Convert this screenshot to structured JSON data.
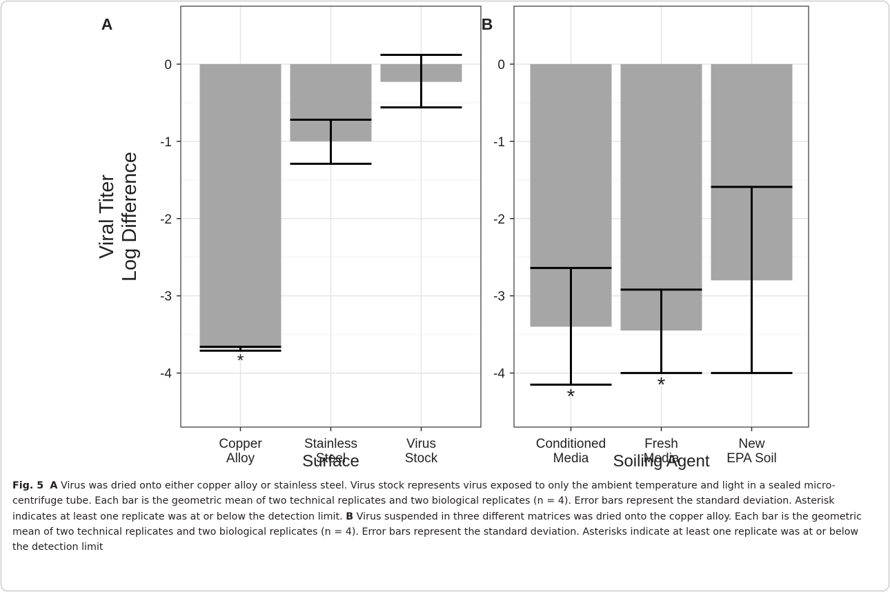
{
  "chart_data": [
    {
      "type": "bar",
      "panel_label": "A",
      "categories": [
        [
          "Copper",
          "Alloy"
        ],
        [
          "Stainless",
          "Steel"
        ],
        [
          "Virus",
          "Stock"
        ]
      ],
      "values": [
        -3.68,
        -1.0,
        -0.23
      ],
      "error_low": [
        -3.71,
        -1.29,
        -0.56
      ],
      "error_high": [
        -3.66,
        -0.72,
        0.12
      ],
      "significant": [
        true,
        false,
        false
      ],
      "asterisk": "*",
      "xlabel": "Surface",
      "ylabel": [
        "Viral Titer",
        "Log Difference"
      ],
      "yticks": [
        0,
        -1,
        -2,
        -3,
        -4
      ],
      "ylim": [
        -4.7,
        0.75
      ],
      "grid": true,
      "bar_color": "#a6a6a6"
    },
    {
      "type": "bar",
      "panel_label": "B",
      "categories": [
        [
          "Conditioned",
          "Media"
        ],
        [
          "Fresh",
          "Media"
        ],
        [
          "New",
          "EPA Soil"
        ]
      ],
      "values": [
        -3.4,
        -3.45,
        -2.8
      ],
      "error_low": [
        -4.15,
        -4.0,
        -4.0
      ],
      "error_high": [
        -2.64,
        -2.92,
        -1.59
      ],
      "significant": [
        true,
        true,
        false
      ],
      "asterisk": "*",
      "xlabel": "Soiling Agent",
      "ylabel": [
        "",
        ""
      ],
      "yticks": [
        0,
        -1,
        -2,
        -3,
        -4
      ],
      "ylim": [
        -4.7,
        0.75
      ],
      "grid": true,
      "bar_color": "#a6a6a6"
    }
  ],
  "caption": {
    "fig_label": "Fig. 5",
    "a_label": "A",
    "a_text": "Virus was dried onto either copper alloy or stainless steel. Virus stock represents virus exposed to only the ambient temperature and light in a sealed micro-centrifuge tube. Each bar is the geometric mean of two technical replicates and two biological replicates (n = 4). Error bars represent the standard deviation. Asterisk indicates at least one replicate was at or below the detection limit.",
    "b_label": "B",
    "b_text": "Virus suspended in three different matrices was dried onto the copper alloy. Each bar is the geometric mean of two technical replicates and two biological replicates (n = 4). Error bars represent the standard deviation. Asterisks indicate at least one replicate was at or below the detection limit"
  }
}
